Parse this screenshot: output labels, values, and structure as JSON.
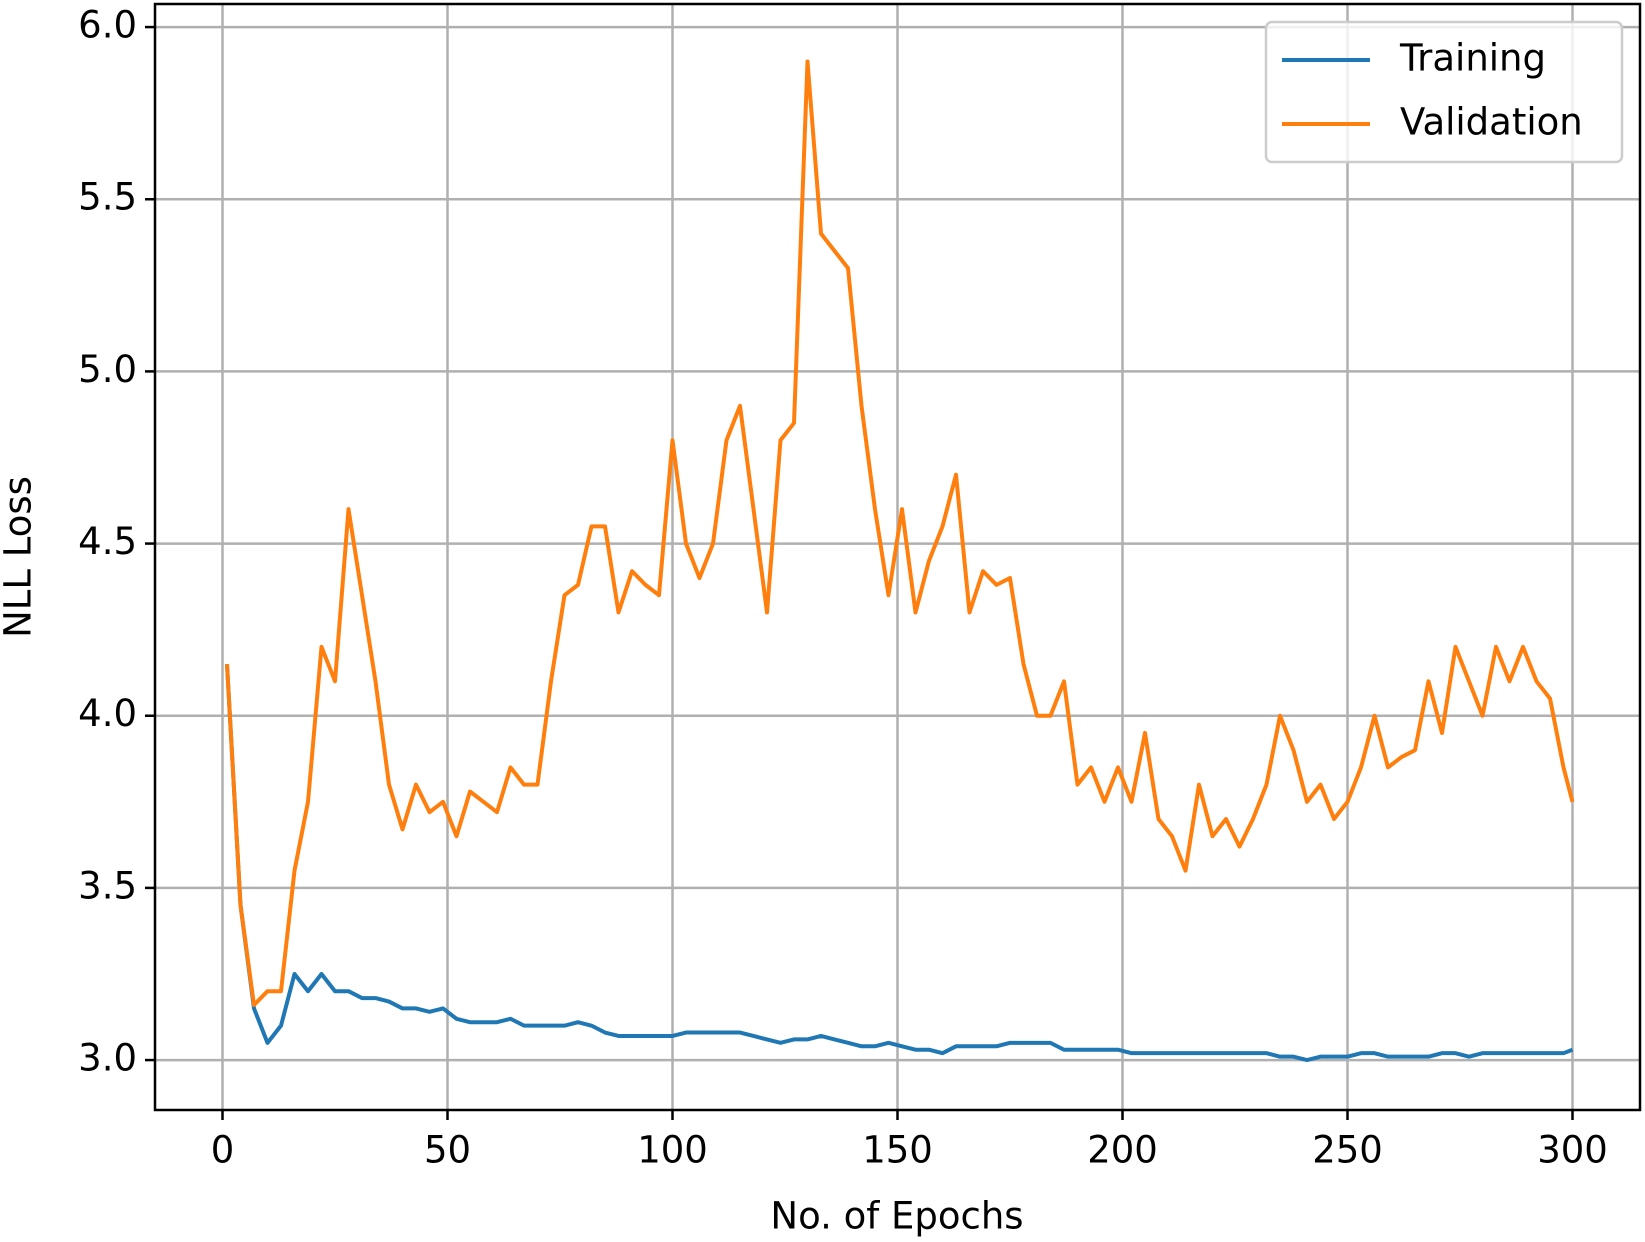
{
  "chart_data": {
    "type": "line",
    "xlabel": "No. of Epochs",
    "ylabel": "NLL Loss",
    "x": [
      1,
      4,
      7,
      10,
      13,
      16,
      19,
      22,
      25,
      28,
      31,
      34,
      37,
      40,
      43,
      46,
      49,
      52,
      55,
      58,
      61,
      64,
      67,
      70,
      73,
      76,
      79,
      82,
      85,
      88,
      91,
      94,
      97,
      100,
      103,
      106,
      109,
      112,
      115,
      118,
      121,
      124,
      127,
      130,
      133,
      136,
      139,
      142,
      145,
      148,
      151,
      154,
      157,
      160,
      163,
      166,
      169,
      172,
      175,
      178,
      181,
      184,
      187,
      190,
      193,
      196,
      199,
      202,
      205,
      208,
      211,
      214,
      217,
      220,
      223,
      226,
      229,
      232,
      235,
      238,
      241,
      244,
      247,
      250,
      253,
      256,
      259,
      262,
      265,
      268,
      271,
      274,
      277,
      280,
      283,
      286,
      289,
      292,
      295,
      298,
      300
    ],
    "series": [
      {
        "name": "Training",
        "color": "#1f77b4",
        "values": [
          4.15,
          3.45,
          3.15,
          3.05,
          3.1,
          3.25,
          3.2,
          3.25,
          3.2,
          3.2,
          3.18,
          3.18,
          3.17,
          3.15,
          3.15,
          3.14,
          3.15,
          3.12,
          3.11,
          3.11,
          3.11,
          3.12,
          3.1,
          3.1,
          3.1,
          3.1,
          3.11,
          3.1,
          3.08,
          3.07,
          3.07,
          3.07,
          3.07,
          3.07,
          3.08,
          3.08,
          3.08,
          3.08,
          3.08,
          3.07,
          3.06,
          3.05,
          3.06,
          3.06,
          3.07,
          3.06,
          3.05,
          3.04,
          3.04,
          3.05,
          3.04,
          3.03,
          3.03,
          3.02,
          3.04,
          3.04,
          3.04,
          3.04,
          3.05,
          3.05,
          3.05,
          3.05,
          3.03,
          3.03,
          3.03,
          3.03,
          3.03,
          3.02,
          3.02,
          3.02,
          3.02,
          3.02,
          3.02,
          3.02,
          3.02,
          3.02,
          3.02,
          3.02,
          3.01,
          3.01,
          3.0,
          3.01,
          3.01,
          3.01,
          3.02,
          3.02,
          3.01,
          3.01,
          3.01,
          3.01,
          3.02,
          3.02,
          3.01,
          3.02,
          3.02,
          3.02,
          3.02,
          3.02,
          3.02,
          3.02,
          3.03
        ]
      },
      {
        "name": "Validation",
        "color": "#ff7f0e",
        "values": [
          4.15,
          3.45,
          3.16,
          3.2,
          3.2,
          3.55,
          3.75,
          4.2,
          4.1,
          4.6,
          4.35,
          4.1,
          3.8,
          3.67,
          3.8,
          3.72,
          3.75,
          3.65,
          3.78,
          3.75,
          3.72,
          3.85,
          3.8,
          3.8,
          4.1,
          4.35,
          4.38,
          4.55,
          4.55,
          4.3,
          4.42,
          4.38,
          4.35,
          4.8,
          4.5,
          4.4,
          4.5,
          4.8,
          4.9,
          4.6,
          4.3,
          4.8,
          4.85,
          5.9,
          5.4,
          5.35,
          5.3,
          4.9,
          4.6,
          4.35,
          4.6,
          4.3,
          4.45,
          4.55,
          4.7,
          4.3,
          4.42,
          4.38,
          4.4,
          4.15,
          4.0,
          4.0,
          4.1,
          3.8,
          3.85,
          3.75,
          3.85,
          3.75,
          3.95,
          3.7,
          3.65,
          3.55,
          3.8,
          3.65,
          3.7,
          3.62,
          3.7,
          3.8,
          4.0,
          3.9,
          3.75,
          3.8,
          3.7,
          3.75,
          3.85,
          4.0,
          3.85,
          3.88,
          3.9,
          4.1,
          3.95,
          4.2,
          4.1,
          4.0,
          4.2,
          4.1,
          4.2,
          4.1,
          4.05,
          3.85,
          3.75
        ]
      }
    ],
    "xlim": [
      -15,
      315
    ],
    "ylim": [
      2.855,
      6.067
    ],
    "xticks": [
      0,
      50,
      100,
      150,
      200,
      250,
      300
    ],
    "yticks": [
      {
        "value": 3,
        "label": "3.0"
      },
      3.5,
      {
        "value": 4,
        "label": "4.0"
      },
      4.5,
      {
        "value": 5,
        "label": "5.0"
      },
      5.5,
      {
        "value": 6,
        "label": "6.0"
      }
    ],
    "grid": true,
    "legend": "upper right"
  }
}
